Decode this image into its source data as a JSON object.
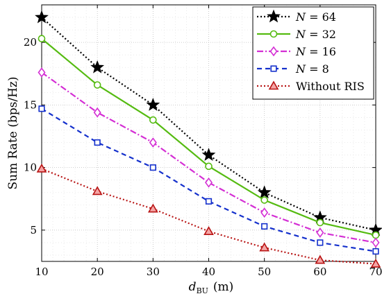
{
  "chart_data": {
    "type": "line",
    "x": [
      10,
      20,
      30,
      40,
      50,
      60,
      70
    ],
    "xlabel_main": "d",
    "xlabel_sub": "BU",
    "xlabel_unit": "(m)",
    "ylabel": "Sum Rate (bps/Hz)",
    "xlim": [
      10,
      70
    ],
    "ylim": [
      2.5,
      23
    ],
    "xticks": [
      "10",
      "20",
      "30",
      "40",
      "50",
      "60",
      "70"
    ],
    "yticks": [
      {
        "value": 5,
        "label": "5"
      },
      {
        "value": 10,
        "label": "10"
      },
      {
        "value": 15,
        "label": "15"
      },
      {
        "value": 20,
        "label": "20"
      }
    ],
    "grid": true,
    "legend_position": "top-right",
    "series": [
      {
        "name_var": "N",
        "name_eq": "= 64",
        "color": "#000000",
        "dash": "2,3",
        "marker": "star",
        "marker_fill": "#000000",
        "values": [
          22.0,
          18.0,
          15.0,
          11.0,
          8.0,
          6.0,
          5.0
        ]
      },
      {
        "name_var": "N",
        "name_eq": "= 32",
        "color": "#55bb11",
        "dash": "",
        "marker": "circle",
        "marker_fill": "none",
        "values": [
          20.3,
          16.6,
          13.8,
          10.1,
          7.4,
          5.6,
          4.6
        ]
      },
      {
        "name_var": "N",
        "name_eq": "= 16",
        "color": "#d42ed4",
        "dash": "9,3,2,3",
        "marker": "diamond",
        "marker_fill": "none",
        "values": [
          17.6,
          14.4,
          12.0,
          8.8,
          6.4,
          4.8,
          4.0
        ]
      },
      {
        "name_var": "N",
        "name_eq": "= 8",
        "color": "#1430cc",
        "dash": "7,5",
        "marker": "square",
        "marker_fill": "none",
        "values": [
          14.7,
          12.0,
          10.0,
          7.3,
          5.3,
          4.0,
          3.3
        ]
      },
      {
        "name_var": "",
        "name_eq": "Without RIS",
        "color": "#b81414",
        "dash": "2,3",
        "marker": "triangle",
        "marker_fill": "#f4a5a5",
        "values": [
          9.9,
          8.1,
          6.7,
          4.9,
          3.6,
          2.6,
          2.3
        ]
      }
    ]
  }
}
